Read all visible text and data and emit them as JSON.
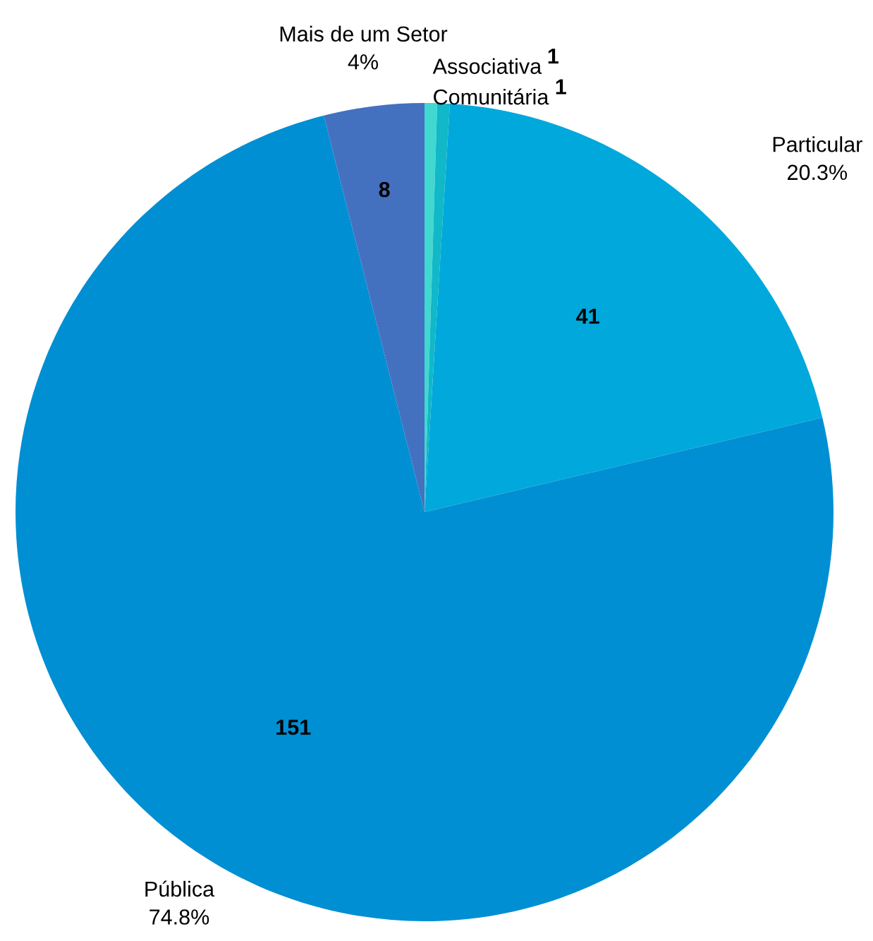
{
  "chart_data": {
    "type": "pie",
    "categories": [
      "Associativa",
      "Comunitária",
      "Particular",
      "Pública",
      "Mais de um Setor"
    ],
    "values": [
      1,
      1,
      41,
      151,
      8
    ],
    "colors": [
      "#40d8d0",
      "#10b8c8",
      "#00a8dc",
      "#008fd3",
      "#4470c0"
    ],
    "value_labels": [
      "1",
      "1",
      "41",
      "151",
      "8"
    ],
    "annotations": [
      {
        "text": "20.3%",
        "x": "Particular"
      },
      {
        "text": "74.8%",
        "x": "Pública"
      },
      {
        "text": "4%",
        "x": "Mais de um Setor"
      }
    ]
  }
}
